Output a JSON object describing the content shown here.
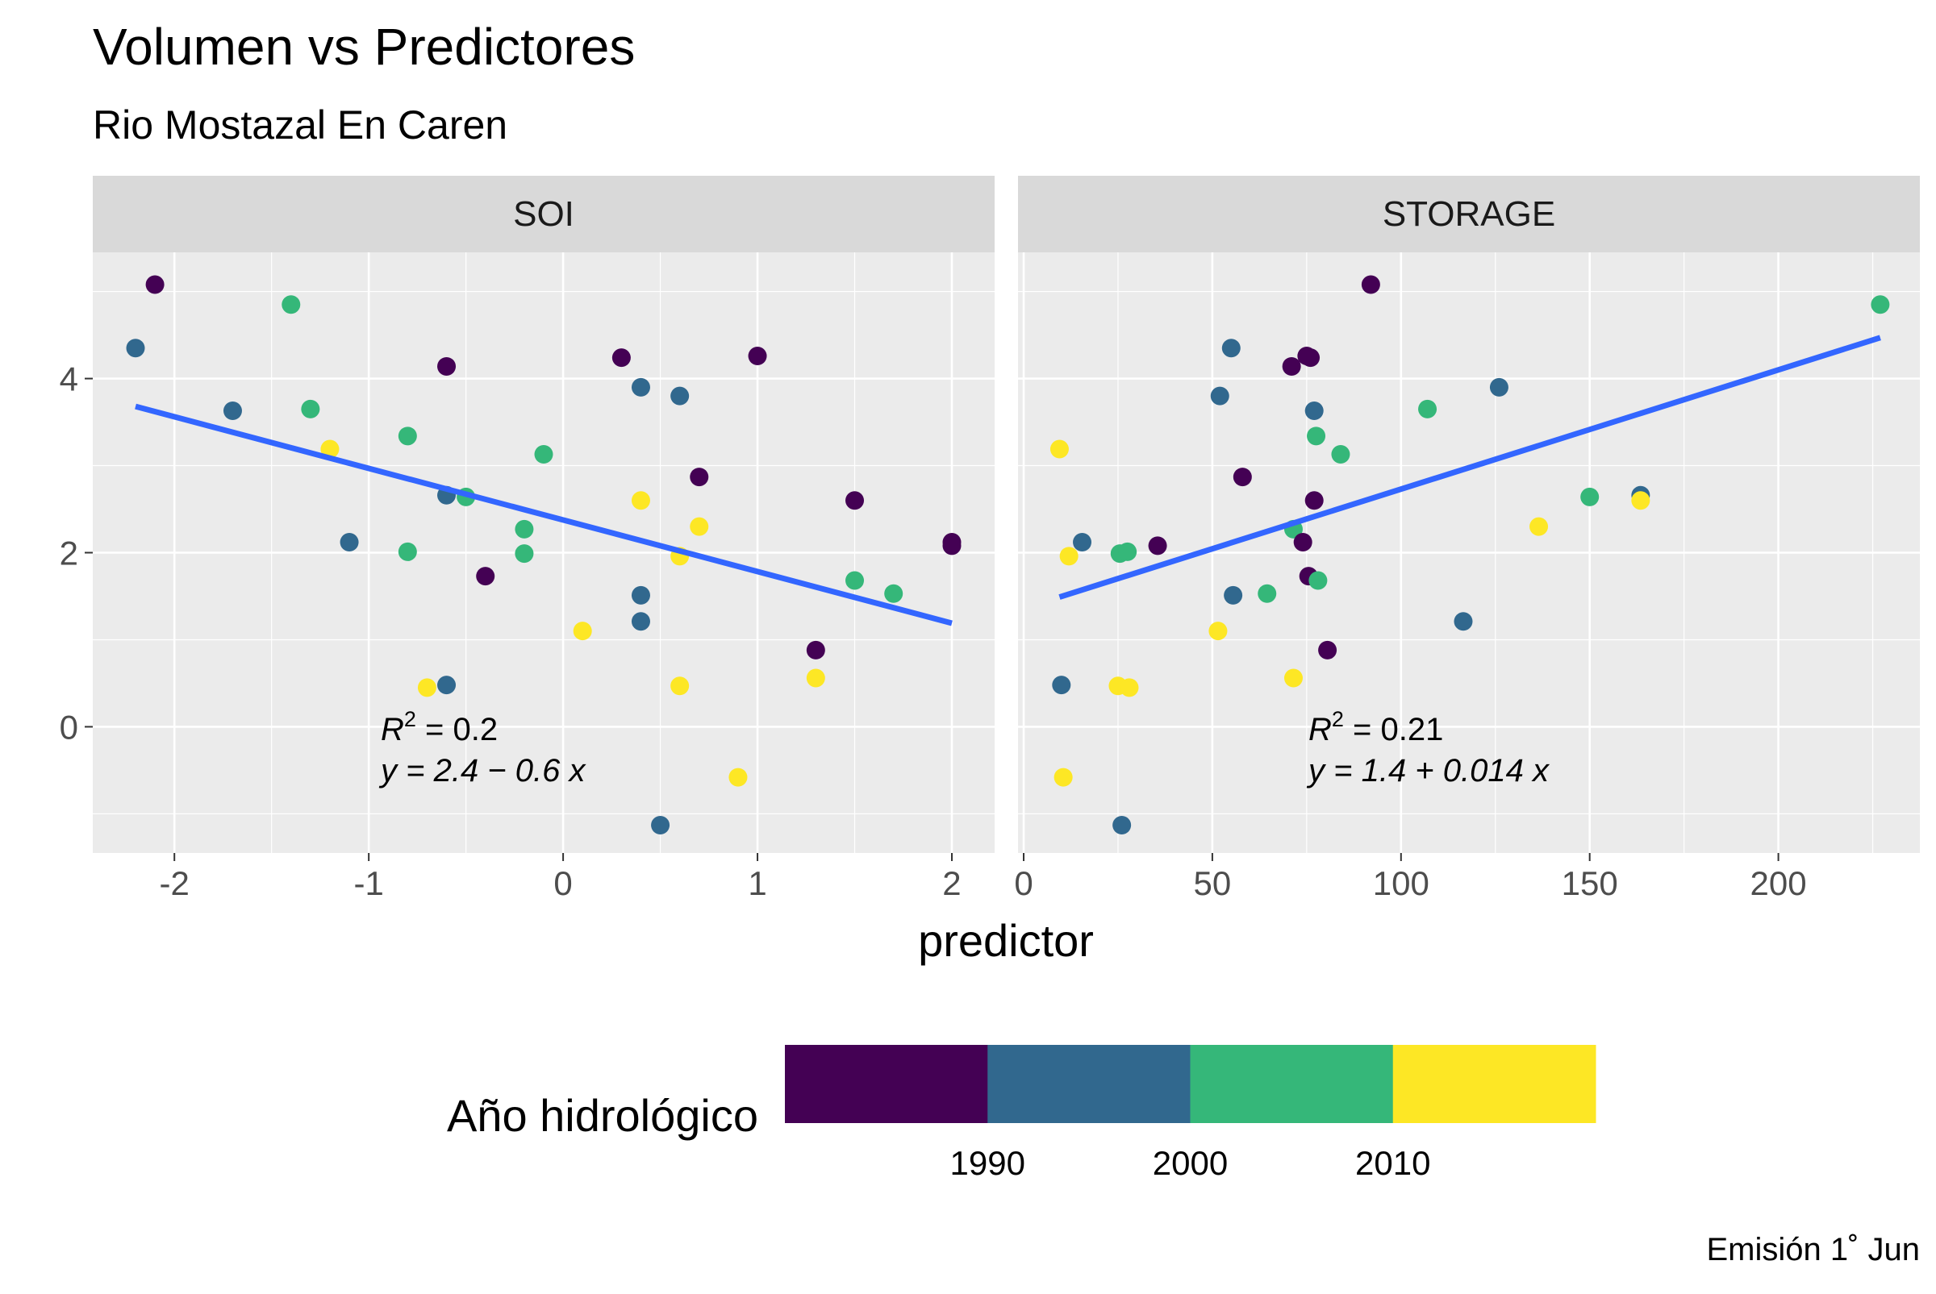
{
  "title": "Volumen vs Predictores",
  "subtitle": "Rio Mostazal En Caren",
  "caption": "Emisión 1˚ Jun",
  "chart_data": {
    "type": "scatter",
    "xlabel": "predictor",
    "ylabel": "",
    "ylim": [
      -1.45,
      5.45
    ],
    "y_ticks": [
      0,
      2,
      4
    ],
    "y_tick_labels": [
      "0",
      "2",
      "4"
    ],
    "grid": true,
    "legend": {
      "title": "Año hidrológico",
      "position": "bottom",
      "labels": [
        "1990",
        "2000",
        "2010"
      ],
      "bins": [
        {
          "range": [
            1980,
            1990
          ],
          "color": "#440154"
        },
        {
          "range": [
            1990,
            2000
          ],
          "color": "#31688E"
        },
        {
          "range": [
            2000,
            2010
          ],
          "color": "#35B779"
        },
        {
          "range": [
            2010,
            2020
          ],
          "color": "#FDE725"
        }
      ]
    },
    "line_color": "#3366FF",
    "panels": [
      {
        "name": "SOI",
        "xlim": [
          -2.42,
          2.22
        ],
        "x_ticks": [
          -2,
          -1,
          0,
          1,
          2
        ],
        "x_tick_labels": [
          "-2",
          "-1",
          "0",
          "1",
          "2"
        ],
        "fit": {
          "x": [
            -2.2,
            2.0
          ],
          "y": [
            3.68,
            1.19
          ]
        },
        "annotation": {
          "r2_label": "R",
          "r2_value": "= 0.2",
          "equation": "y = 2.4 − 0.6 x"
        },
        "points": [
          {
            "x": -2.1,
            "y": 5.08,
            "c": "#440154"
          },
          {
            "x": -2.2,
            "y": 4.35,
            "c": "#31688E"
          },
          {
            "x": -1.4,
            "y": 4.85,
            "c": "#35B779"
          },
          {
            "x": -1.7,
            "y": 3.63,
            "c": "#31688E"
          },
          {
            "x": -1.3,
            "y": 3.65,
            "c": "#35B779"
          },
          {
            "x": -1.2,
            "y": 3.19,
            "c": "#FDE725"
          },
          {
            "x": -0.8,
            "y": 3.34,
            "c": "#35B779"
          },
          {
            "x": -0.6,
            "y": 4.14,
            "c": "#440154"
          },
          {
            "x": -0.6,
            "y": 2.66,
            "c": "#31688E"
          },
          {
            "x": -0.5,
            "y": 2.64,
            "c": "#35B779"
          },
          {
            "x": -1.1,
            "y": 2.12,
            "c": "#31688E"
          },
          {
            "x": -0.8,
            "y": 2.01,
            "c": "#35B779"
          },
          {
            "x": -0.4,
            "y": 1.73,
            "c": "#440154"
          },
          {
            "x": -0.2,
            "y": 2.27,
            "c": "#35B779"
          },
          {
            "x": -0.2,
            "y": 1.99,
            "c": "#35B779"
          },
          {
            "x": -0.1,
            "y": 3.13,
            "c": "#35B779"
          },
          {
            "x": -0.7,
            "y": 0.45,
            "c": "#FDE725"
          },
          {
            "x": -0.6,
            "y": 0.48,
            "c": "#31688E"
          },
          {
            "x": 0.1,
            "y": 1.1,
            "c": "#FDE725"
          },
          {
            "x": 0.3,
            "y": 4.24,
            "c": "#440154"
          },
          {
            "x": 0.4,
            "y": 3.9,
            "c": "#31688E"
          },
          {
            "x": 0.4,
            "y": 2.6,
            "c": "#FDE725"
          },
          {
            "x": 0.4,
            "y": 1.51,
            "c": "#31688E"
          },
          {
            "x": 0.4,
            "y": 1.21,
            "c": "#31688E"
          },
          {
            "x": 0.5,
            "y": -1.13,
            "c": "#31688E"
          },
          {
            "x": 0.6,
            "y": 3.8,
            "c": "#31688E"
          },
          {
            "x": 0.6,
            "y": 1.96,
            "c": "#FDE725"
          },
          {
            "x": 0.6,
            "y": 0.47,
            "c": "#FDE725"
          },
          {
            "x": 0.7,
            "y": 2.87,
            "c": "#440154"
          },
          {
            "x": 0.7,
            "y": 2.3,
            "c": "#FDE725"
          },
          {
            "x": 0.9,
            "y": -0.58,
            "c": "#FDE725"
          },
          {
            "x": 1.0,
            "y": 4.26,
            "c": "#440154"
          },
          {
            "x": 1.3,
            "y": 0.88,
            "c": "#440154"
          },
          {
            "x": 1.3,
            "y": 0.56,
            "c": "#FDE725"
          },
          {
            "x": 1.5,
            "y": 2.6,
            "c": "#440154"
          },
          {
            "x": 1.5,
            "y": 1.68,
            "c": "#35B779"
          },
          {
            "x": 1.7,
            "y": 1.53,
            "c": "#35B779"
          },
          {
            "x": 2.0,
            "y": 2.12,
            "c": "#440154"
          },
          {
            "x": 2.0,
            "y": 2.08,
            "c": "#440154"
          }
        ]
      },
      {
        "name": "STORAGE",
        "xlim": [
          -1.5,
          237.5
        ],
        "x_ticks": [
          0,
          50,
          100,
          150,
          200
        ],
        "x_tick_labels": [
          "0",
          "50",
          "100",
          "150",
          "200"
        ],
        "fit": {
          "x": [
            9.5,
            227
          ],
          "y": [
            1.49,
            4.47
          ]
        },
        "annotation": {
          "r2_label": "R",
          "r2_value": "= 0.21",
          "equation": "y = 1.4 + 0.014 x"
        },
        "points": [
          {
            "x": 92,
            "y": 5.08,
            "c": "#440154"
          },
          {
            "x": 227,
            "y": 4.85,
            "c": "#35B779"
          },
          {
            "x": 55,
            "y": 4.35,
            "c": "#31688E"
          },
          {
            "x": 71,
            "y": 4.14,
            "c": "#440154"
          },
          {
            "x": 76,
            "y": 4.24,
            "c": "#440154"
          },
          {
            "x": 75,
            "y": 4.26,
            "c": "#440154"
          },
          {
            "x": 52,
            "y": 3.8,
            "c": "#31688E"
          },
          {
            "x": 77,
            "y": 3.63,
            "c": "#31688E"
          },
          {
            "x": 107,
            "y": 3.65,
            "c": "#35B779"
          },
          {
            "x": 126,
            "y": 3.9,
            "c": "#31688E"
          },
          {
            "x": 77.5,
            "y": 3.34,
            "c": "#35B779"
          },
          {
            "x": 84,
            "y": 3.13,
            "c": "#35B779"
          },
          {
            "x": 9.5,
            "y": 3.19,
            "c": "#FDE725"
          },
          {
            "x": 58,
            "y": 2.87,
            "c": "#440154"
          },
          {
            "x": 77,
            "y": 2.6,
            "c": "#440154"
          },
          {
            "x": 150,
            "y": 2.64,
            "c": "#35B779"
          },
          {
            "x": 163.5,
            "y": 2.66,
            "c": "#31688E"
          },
          {
            "x": 163.5,
            "y": 2.6,
            "c": "#FDE725"
          },
          {
            "x": 136.5,
            "y": 2.3,
            "c": "#FDE725"
          },
          {
            "x": 71.5,
            "y": 2.27,
            "c": "#35B779"
          },
          {
            "x": 74,
            "y": 2.12,
            "c": "#440154"
          },
          {
            "x": 15.5,
            "y": 2.12,
            "c": "#31688E"
          },
          {
            "x": 35.5,
            "y": 2.08,
            "c": "#440154"
          },
          {
            "x": 25.5,
            "y": 1.99,
            "c": "#35B779"
          },
          {
            "x": 27.5,
            "y": 2.01,
            "c": "#35B779"
          },
          {
            "x": 12,
            "y": 1.96,
            "c": "#FDE725"
          },
          {
            "x": 75.5,
            "y": 1.73,
            "c": "#440154"
          },
          {
            "x": 78,
            "y": 1.68,
            "c": "#35B779"
          },
          {
            "x": 55.5,
            "y": 1.51,
            "c": "#31688E"
          },
          {
            "x": 64.5,
            "y": 1.53,
            "c": "#35B779"
          },
          {
            "x": 116.5,
            "y": 1.21,
            "c": "#31688E"
          },
          {
            "x": 51.5,
            "y": 1.1,
            "c": "#FDE725"
          },
          {
            "x": 80.5,
            "y": 0.88,
            "c": "#440154"
          },
          {
            "x": 71.5,
            "y": 0.56,
            "c": "#FDE725"
          },
          {
            "x": 10,
            "y": 0.48,
            "c": "#31688E"
          },
          {
            "x": 25,
            "y": 0.47,
            "c": "#FDE725"
          },
          {
            "x": 28,
            "y": 0.45,
            "c": "#FDE725"
          },
          {
            "x": 10.5,
            "y": -0.58,
            "c": "#FDE725"
          },
          {
            "x": 26,
            "y": -1.13,
            "c": "#31688E"
          }
        ]
      }
    ]
  }
}
